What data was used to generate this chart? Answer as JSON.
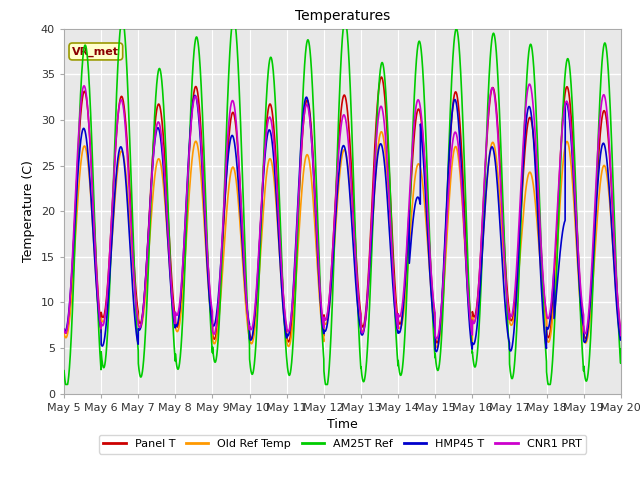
{
  "title": "Temperatures",
  "xlabel": "Time",
  "ylabel": "Temperature (C)",
  "annotation": "VR_met",
  "ylim": [
    0,
    40
  ],
  "xlim_days": [
    0,
    15
  ],
  "x_tick_labels": [
    "May 5",
    "May 6",
    "May 7",
    "May 8",
    "May 9",
    "May 10",
    "May 11",
    "May 12",
    "May 13",
    "May 14",
    "May 15",
    "May 16",
    "May 17",
    "May 18",
    "May 19",
    "May 20"
  ],
  "series_names": [
    "Panel T",
    "Old Ref Temp",
    "AM25T Ref",
    "HMP45 T",
    "CNR1 PRT"
  ],
  "series_colors": [
    "#cc0000",
    "#ff9900",
    "#00cc00",
    "#0000cc",
    "#cc00cc"
  ],
  "lw": 1.2,
  "fig_bg": "#ffffff",
  "plot_bg": "#e8e8e8",
  "grid_color": "#ffffff",
  "title_fontsize": 10,
  "label_fontsize": 9,
  "tick_fontsize": 8,
  "legend_fontsize": 8
}
